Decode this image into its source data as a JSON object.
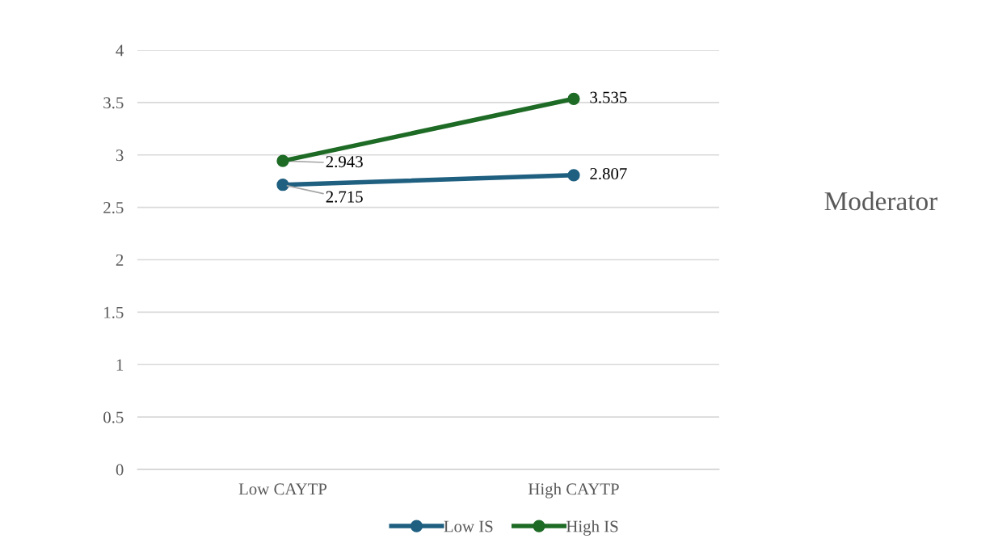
{
  "chart_data": {
    "type": "line",
    "categories": [
      "Low CAYTP",
      "High CAYTP"
    ],
    "series": [
      {
        "name": "Low IS",
        "color": "#1f5f80",
        "values": [
          2.715,
          2.807
        ]
      },
      {
        "name": "High IS",
        "color": "#1e6b26",
        "values": [
          2.943,
          3.535
        ]
      }
    ],
    "ylim": [
      0,
      4
    ],
    "yticks": [
      0,
      0.5,
      1,
      1.5,
      2,
      2.5,
      3,
      3.5,
      4
    ],
    "grid": "y",
    "legend": "bottom",
    "marker": "circle",
    "line_style": "solid",
    "data_labels": true,
    "annotations": [
      "Moderator"
    ]
  }
}
